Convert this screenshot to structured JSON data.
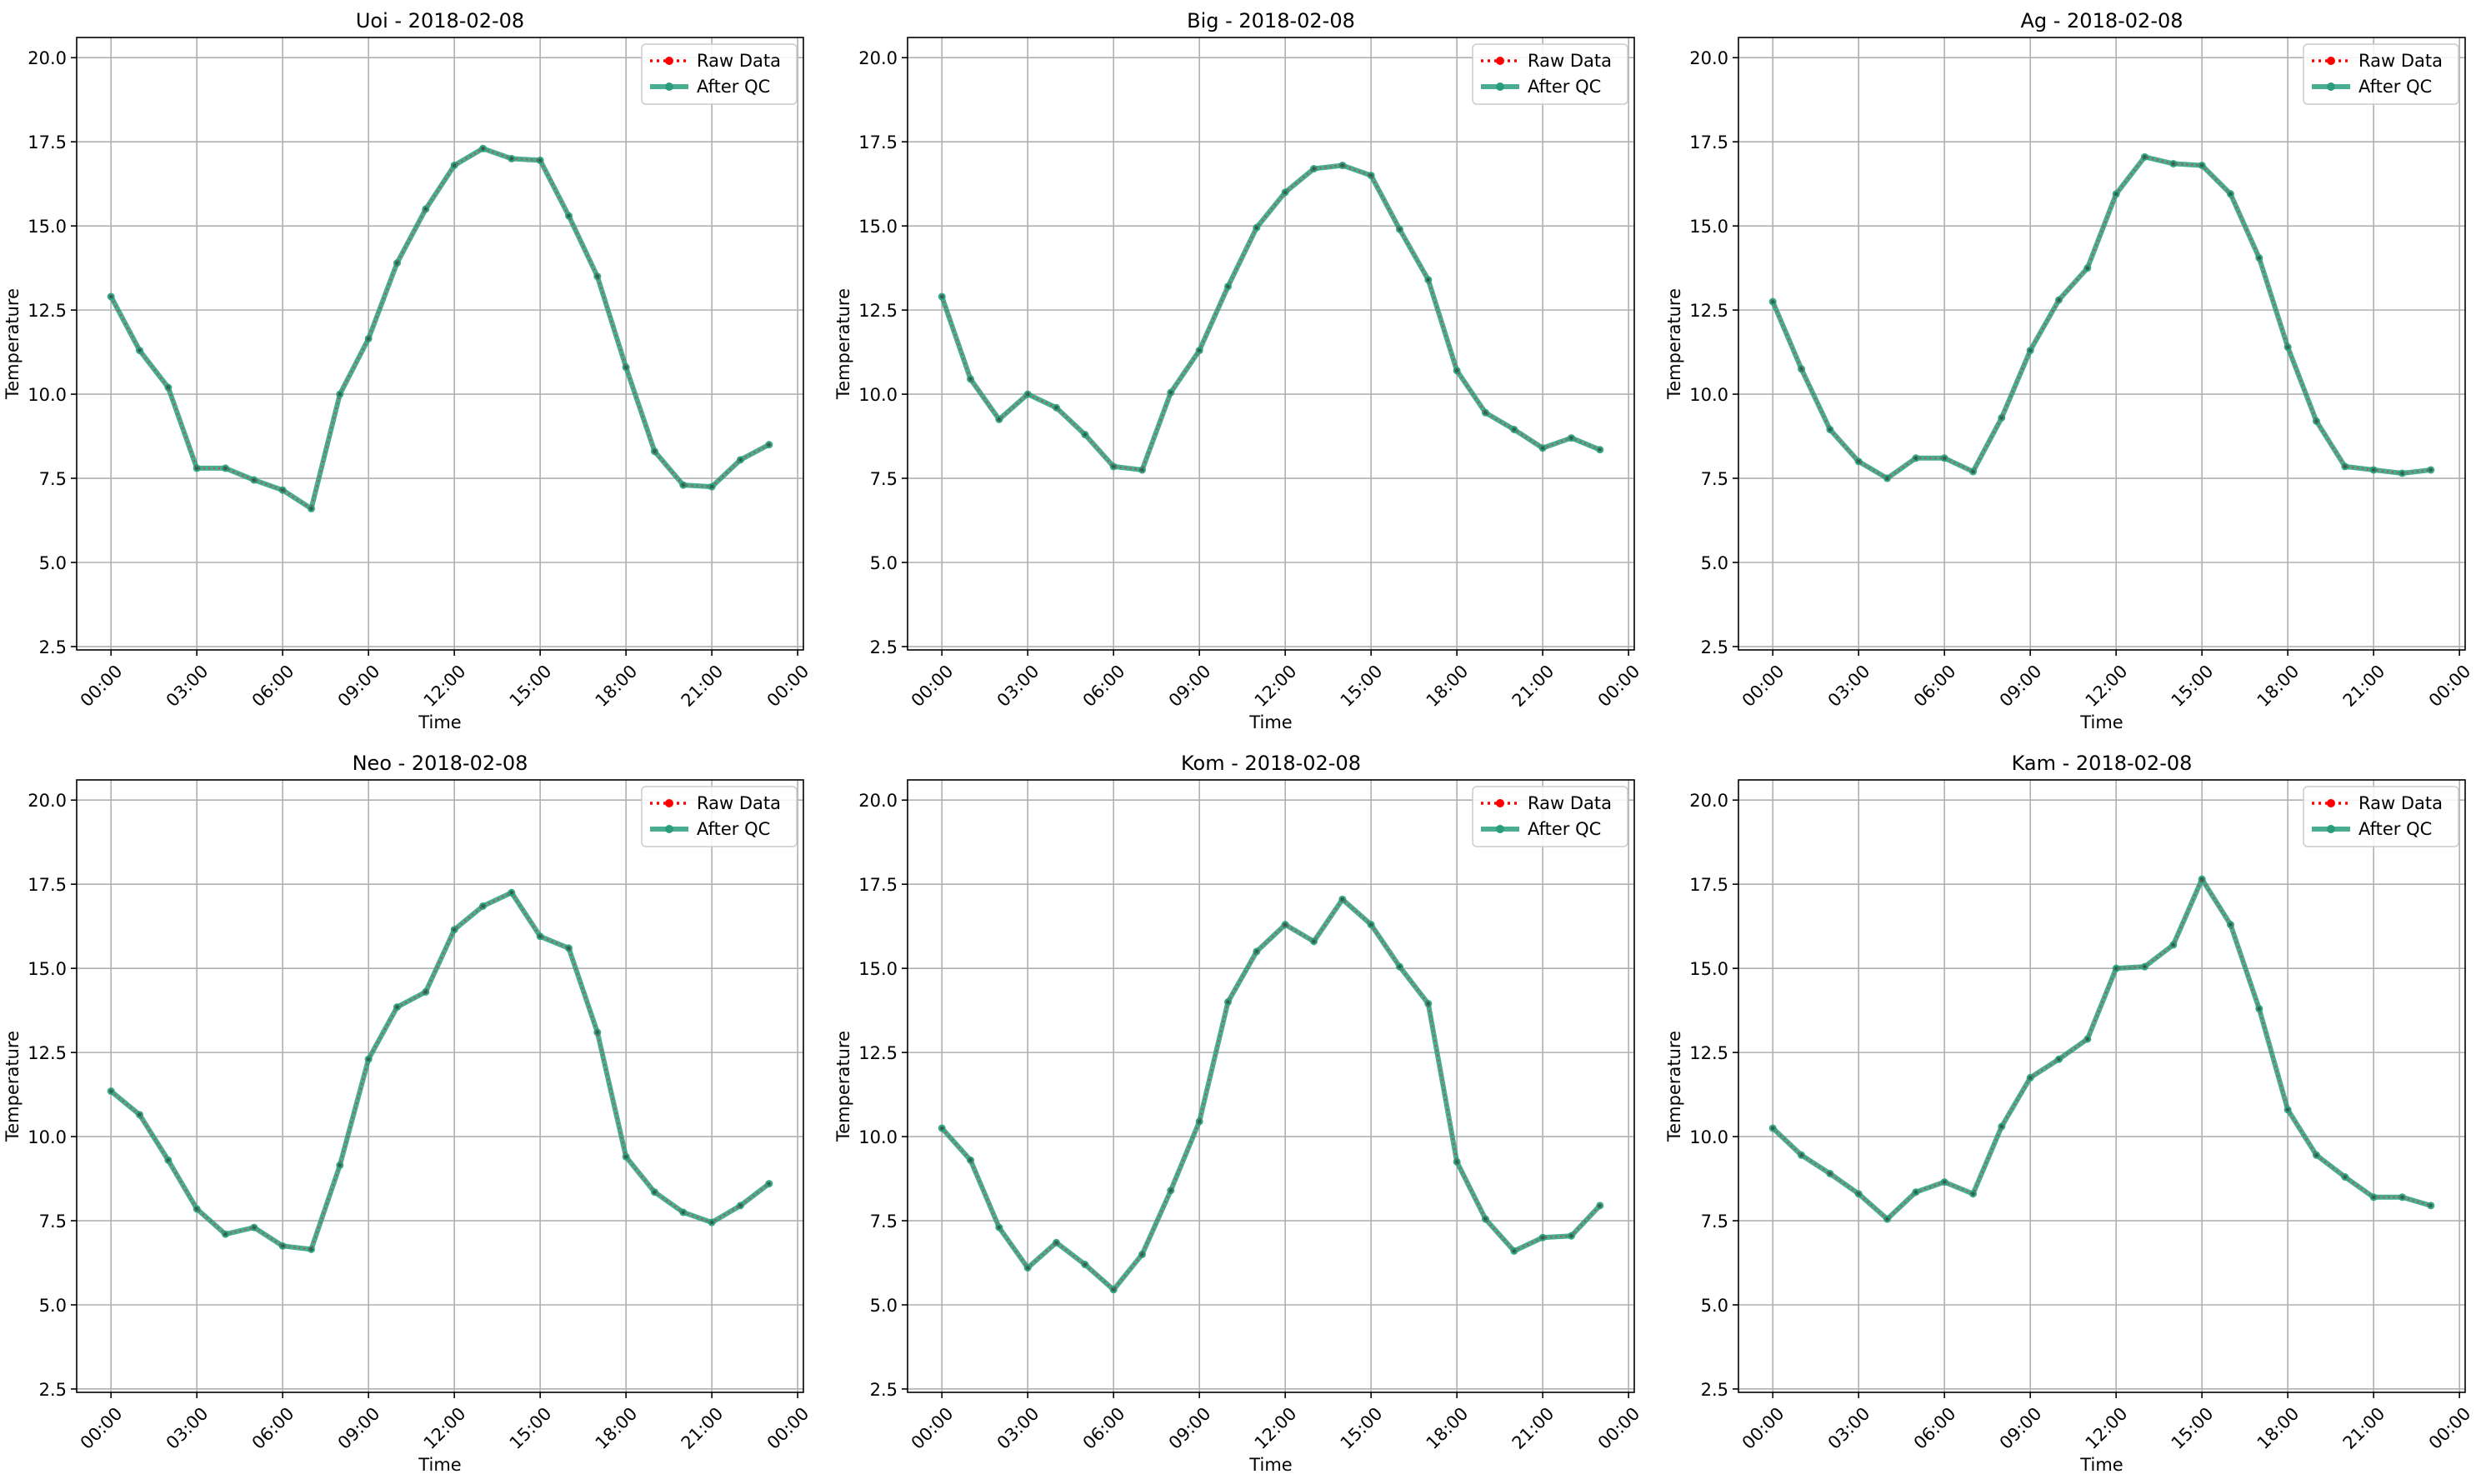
{
  "chart_data": [
    {
      "type": "line",
      "title": "Uoi - 2018-02-08",
      "xlabel": "Time",
      "ylabel": "Temperature",
      "xticks": [
        "00:00",
        "03:00",
        "06:00",
        "09:00",
        "12:00",
        "15:00",
        "18:00",
        "21:00",
        "00:00"
      ],
      "xlim_hours": [
        -1.2,
        24.2
      ],
      "ylim": [
        2.4,
        20.6
      ],
      "yticks": [
        2.5,
        5.0,
        7.5,
        10.0,
        12.5,
        15.0,
        17.5,
        20.0
      ],
      "grid": true,
      "legend_position": "top-right",
      "x_hours": [
        0,
        1,
        2,
        3,
        4,
        5,
        6,
        7,
        8,
        9,
        10,
        11,
        12,
        13,
        14,
        15,
        16,
        17,
        18,
        19,
        20,
        21,
        22,
        23
      ],
      "series": [
        {
          "name": "Raw Data",
          "color": "#ff0000",
          "values": [
            12.9,
            11.3,
            10.2,
            7.8,
            7.8,
            7.45,
            7.15,
            6.6,
            10.0,
            11.65,
            13.9,
            15.5,
            16.8,
            17.3,
            17.0,
            16.95,
            15.3,
            13.5,
            10.8,
            8.3,
            7.3,
            7.25,
            8.05,
            8.5
          ]
        },
        {
          "name": "After QC",
          "color": "#2a9d7c",
          "values": [
            12.9,
            11.3,
            10.2,
            7.8,
            7.8,
            7.45,
            7.15,
            6.6,
            10.0,
            11.65,
            13.9,
            15.5,
            16.8,
            17.3,
            17.0,
            16.95,
            15.3,
            13.5,
            10.8,
            8.3,
            7.3,
            7.25,
            8.05,
            8.5
          ]
        }
      ]
    },
    {
      "type": "line",
      "title": "Big - 2018-02-08",
      "xlabel": "Time",
      "ylabel": "Temperature",
      "xticks": [
        "00:00",
        "03:00",
        "06:00",
        "09:00",
        "12:00",
        "15:00",
        "18:00",
        "21:00",
        "00:00"
      ],
      "xlim_hours": [
        -1.2,
        24.2
      ],
      "ylim": [
        2.4,
        20.6
      ],
      "yticks": [
        2.5,
        5.0,
        7.5,
        10.0,
        12.5,
        15.0,
        17.5,
        20.0
      ],
      "grid": true,
      "legend_position": "top-right",
      "x_hours": [
        0,
        1,
        2,
        3,
        4,
        5,
        6,
        7,
        8,
        9,
        10,
        11,
        12,
        13,
        14,
        15,
        16,
        17,
        18,
        19,
        20,
        21,
        22,
        23
      ],
      "series": [
        {
          "name": "Raw Data",
          "color": "#ff0000",
          "values": [
            12.9,
            10.45,
            9.25,
            10.0,
            9.6,
            8.8,
            7.85,
            7.75,
            10.05,
            11.3,
            13.2,
            14.95,
            16.0,
            16.7,
            16.8,
            16.5,
            14.9,
            13.4,
            10.7,
            9.45,
            8.95,
            8.4,
            8.7,
            8.35
          ]
        },
        {
          "name": "After QC",
          "color": "#2a9d7c",
          "values": [
            12.9,
            10.45,
            9.25,
            10.0,
            9.6,
            8.8,
            7.85,
            7.75,
            10.05,
            11.3,
            13.2,
            14.95,
            16.0,
            16.7,
            16.8,
            16.5,
            14.9,
            13.4,
            10.7,
            9.45,
            8.95,
            8.4,
            8.7,
            8.35
          ]
        }
      ]
    },
    {
      "type": "line",
      "title": "Ag - 2018-02-08",
      "xlabel": "Time",
      "ylabel": "Temperature",
      "xticks": [
        "00:00",
        "03:00",
        "06:00",
        "09:00",
        "12:00",
        "15:00",
        "18:00",
        "21:00",
        "00:00"
      ],
      "xlim_hours": [
        -1.2,
        24.2
      ],
      "ylim": [
        2.4,
        20.6
      ],
      "yticks": [
        2.5,
        5.0,
        7.5,
        10.0,
        12.5,
        15.0,
        17.5,
        20.0
      ],
      "grid": true,
      "legend_position": "top-right",
      "x_hours": [
        0,
        1,
        2,
        3,
        4,
        5,
        6,
        7,
        8,
        9,
        10,
        11,
        12,
        13,
        14,
        15,
        16,
        17,
        18,
        19,
        20,
        21,
        22,
        23
      ],
      "series": [
        {
          "name": "Raw Data",
          "color": "#ff0000",
          "values": [
            12.75,
            10.75,
            8.95,
            8.0,
            7.5,
            8.1,
            8.1,
            7.7,
            9.3,
            11.3,
            12.8,
            13.75,
            15.95,
            17.05,
            16.85,
            16.8,
            15.95,
            14.05,
            11.4,
            9.2,
            7.85,
            7.75,
            7.65,
            7.75
          ]
        },
        {
          "name": "After QC",
          "color": "#2a9d7c",
          "values": [
            12.75,
            10.75,
            8.95,
            8.0,
            7.5,
            8.1,
            8.1,
            7.7,
            9.3,
            11.3,
            12.8,
            13.75,
            15.95,
            17.05,
            16.85,
            16.8,
            15.95,
            14.05,
            11.4,
            9.2,
            7.85,
            7.75,
            7.65,
            7.75
          ]
        }
      ]
    },
    {
      "type": "line",
      "title": "Neo - 2018-02-08",
      "xlabel": "Time",
      "ylabel": "Temperature",
      "xticks": [
        "00:00",
        "03:00",
        "06:00",
        "09:00",
        "12:00",
        "15:00",
        "18:00",
        "21:00",
        "00:00"
      ],
      "xlim_hours": [
        -1.2,
        24.2
      ],
      "ylim": [
        2.4,
        20.6
      ],
      "yticks": [
        2.5,
        5.0,
        7.5,
        10.0,
        12.5,
        15.0,
        17.5,
        20.0
      ],
      "grid": true,
      "legend_position": "top-right",
      "x_hours": [
        0,
        1,
        2,
        3,
        4,
        5,
        6,
        7,
        8,
        9,
        10,
        11,
        12,
        13,
        14,
        15,
        16,
        17,
        18,
        19,
        20,
        21,
        22,
        23
      ],
      "series": [
        {
          "name": "Raw Data",
          "color": "#ff0000",
          "values": [
            11.35,
            10.65,
            9.3,
            7.85,
            7.1,
            7.3,
            6.75,
            6.65,
            9.15,
            12.3,
            13.85,
            14.3,
            16.15,
            16.85,
            17.25,
            15.95,
            15.6,
            13.1,
            9.4,
            8.35,
            7.75,
            7.45,
            7.95,
            8.6
          ]
        },
        {
          "name": "After QC",
          "color": "#2a9d7c",
          "values": [
            11.35,
            10.65,
            9.3,
            7.85,
            7.1,
            7.3,
            6.75,
            6.65,
            9.15,
            12.3,
            13.85,
            14.3,
            16.15,
            16.85,
            17.25,
            15.95,
            15.6,
            13.1,
            9.4,
            8.35,
            7.75,
            7.45,
            7.95,
            8.6
          ]
        }
      ]
    },
    {
      "type": "line",
      "title": "Kom - 2018-02-08",
      "xlabel": "Time",
      "ylabel": "Temperature",
      "xticks": [
        "00:00",
        "03:00",
        "06:00",
        "09:00",
        "12:00",
        "15:00",
        "18:00",
        "21:00",
        "00:00"
      ],
      "xlim_hours": [
        -1.2,
        24.2
      ],
      "ylim": [
        2.4,
        20.6
      ],
      "yticks": [
        2.5,
        5.0,
        7.5,
        10.0,
        12.5,
        15.0,
        17.5,
        20.0
      ],
      "grid": true,
      "legend_position": "top-right",
      "x_hours": [
        0,
        1,
        2,
        3,
        4,
        5,
        6,
        7,
        8,
        9,
        10,
        11,
        12,
        13,
        14,
        15,
        16,
        17,
        18,
        19,
        20,
        21,
        22,
        23
      ],
      "series": [
        {
          "name": "Raw Data",
          "color": "#ff0000",
          "values": [
            10.25,
            9.3,
            7.3,
            6.1,
            6.85,
            6.2,
            5.45,
            6.5,
            8.4,
            10.45,
            14.0,
            15.5,
            16.3,
            15.8,
            17.05,
            16.3,
            15.05,
            13.95,
            9.25,
            7.55,
            6.6,
            7.0,
            7.05,
            7.95
          ]
        },
        {
          "name": "After QC",
          "color": "#2a9d7c",
          "values": [
            10.25,
            9.3,
            7.3,
            6.1,
            6.85,
            6.2,
            5.45,
            6.5,
            8.4,
            10.45,
            14.0,
            15.5,
            16.3,
            15.8,
            17.05,
            16.3,
            15.05,
            13.95,
            9.25,
            7.55,
            6.6,
            7.0,
            7.05,
            7.95
          ]
        }
      ]
    },
    {
      "type": "line",
      "title": "Kam - 2018-02-08",
      "xlabel": "Time",
      "ylabel": "Temperature",
      "xticks": [
        "00:00",
        "03:00",
        "06:00",
        "09:00",
        "12:00",
        "15:00",
        "18:00",
        "21:00",
        "00:00"
      ],
      "xlim_hours": [
        -1.2,
        24.2
      ],
      "ylim": [
        2.4,
        20.6
      ],
      "yticks": [
        2.5,
        5.0,
        7.5,
        10.0,
        12.5,
        15.0,
        17.5,
        20.0
      ],
      "grid": true,
      "legend_position": "top-right",
      "x_hours": [
        0,
        1,
        2,
        3,
        4,
        5,
        6,
        7,
        8,
        9,
        10,
        11,
        12,
        13,
        14,
        15,
        16,
        17,
        18,
        19,
        20,
        21,
        22,
        23
      ],
      "series": [
        {
          "name": "Raw Data",
          "color": "#ff0000",
          "values": [
            10.25,
            9.45,
            8.9,
            8.3,
            7.55,
            8.35,
            8.65,
            8.3,
            10.3,
            11.75,
            12.3,
            12.9,
            15.0,
            15.05,
            15.7,
            17.65,
            16.3,
            13.8,
            10.8,
            9.45,
            8.8,
            8.2,
            8.2,
            7.95
          ]
        },
        {
          "name": "After QC",
          "color": "#2a9d7c",
          "values": [
            10.25,
            9.45,
            8.9,
            8.3,
            7.55,
            8.35,
            8.65,
            8.3,
            10.3,
            11.75,
            12.3,
            12.9,
            15.0,
            15.05,
            15.7,
            17.65,
            16.3,
            13.8,
            10.8,
            9.45,
            8.8,
            8.2,
            8.2,
            7.95
          ]
        }
      ]
    }
  ]
}
